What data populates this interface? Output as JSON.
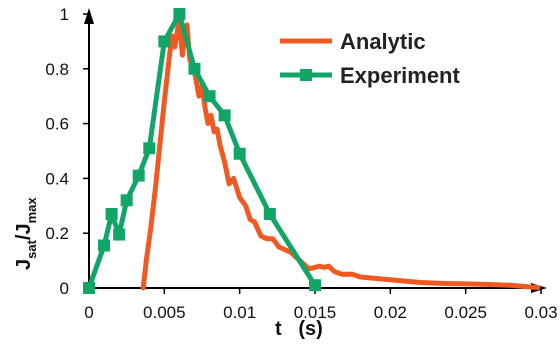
{
  "chart_data": {
    "type": "line",
    "xlabel": "t   (s)",
    "ylabel_main": "J",
    "ylabel_sub1": "sat",
    "ylabel_slash": "/J",
    "ylabel_sub2": "max",
    "xlim": [
      0,
      0.03
    ],
    "ylim": [
      0,
      1
    ],
    "xticks": [
      0,
      0.005,
      0.01,
      0.015,
      0.02,
      0.025,
      0.03
    ],
    "xtick_labels": [
      "0",
      "0.005",
      "0.01",
      "0.015",
      "0.02",
      "0.025",
      "0.03"
    ],
    "yticks": [
      0,
      0.2,
      0.4,
      0.6,
      0.8,
      1
    ],
    "ytick_labels": [
      "0",
      "0.2",
      "0.4",
      "0.6",
      "0.8",
      "1"
    ],
    "grid": false,
    "legend_position": "top-right",
    "series": [
      {
        "name": "Analytic",
        "color": "#F05A22",
        "marker": "none",
        "x": [
          0.0036,
          0.0038,
          0.0041,
          0.0044,
          0.0047,
          0.005,
          0.0053,
          0.0055,
          0.0057,
          0.0059,
          0.006,
          0.0062,
          0.0063,
          0.0065,
          0.0067,
          0.0069,
          0.0071,
          0.0073,
          0.0075,
          0.0077,
          0.0079,
          0.0081,
          0.0083,
          0.0085,
          0.0087,
          0.009,
          0.0093,
          0.0096,
          0.01,
          0.0104,
          0.0107,
          0.011,
          0.0114,
          0.0118,
          0.0122,
          0.0126,
          0.013,
          0.0134,
          0.0138,
          0.0142,
          0.0146,
          0.015,
          0.0153,
          0.0156,
          0.0159,
          0.0163,
          0.0168,
          0.0175,
          0.018,
          0.019,
          0.02,
          0.021,
          0.022,
          0.023,
          0.024,
          0.025,
          0.026,
          0.027,
          0.028,
          0.029,
          0.0298
        ],
        "y": [
          0.0,
          0.1,
          0.22,
          0.36,
          0.52,
          0.68,
          0.83,
          0.92,
          0.88,
          0.95,
          0.98,
          0.85,
          0.9,
          0.96,
          0.83,
          0.82,
          0.76,
          0.7,
          0.74,
          0.66,
          0.6,
          0.63,
          0.57,
          0.58,
          0.52,
          0.46,
          0.38,
          0.4,
          0.33,
          0.3,
          0.25,
          0.24,
          0.19,
          0.18,
          0.18,
          0.15,
          0.14,
          0.13,
          0.11,
          0.09,
          0.07,
          0.075,
          0.08,
          0.075,
          0.08,
          0.06,
          0.05,
          0.05,
          0.04,
          0.035,
          0.03,
          0.025,
          0.02,
          0.018,
          0.016,
          0.015,
          0.014,
          0.012,
          0.01,
          0.005,
          0.002
        ]
      },
      {
        "name": "Experiment",
        "color": "#12A568",
        "marker": "square",
        "x": [
          0.0,
          0.001,
          0.0015,
          0.002,
          0.0025,
          0.0033,
          0.004,
          0.005,
          0.006,
          0.007,
          0.008,
          0.009,
          0.01,
          0.012,
          0.015
        ],
        "y": [
          0.0,
          0.155,
          0.27,
          0.195,
          0.32,
          0.41,
          0.51,
          0.9,
          1.0,
          0.8,
          0.7,
          0.63,
          0.49,
          0.27,
          0.01
        ]
      }
    ]
  }
}
